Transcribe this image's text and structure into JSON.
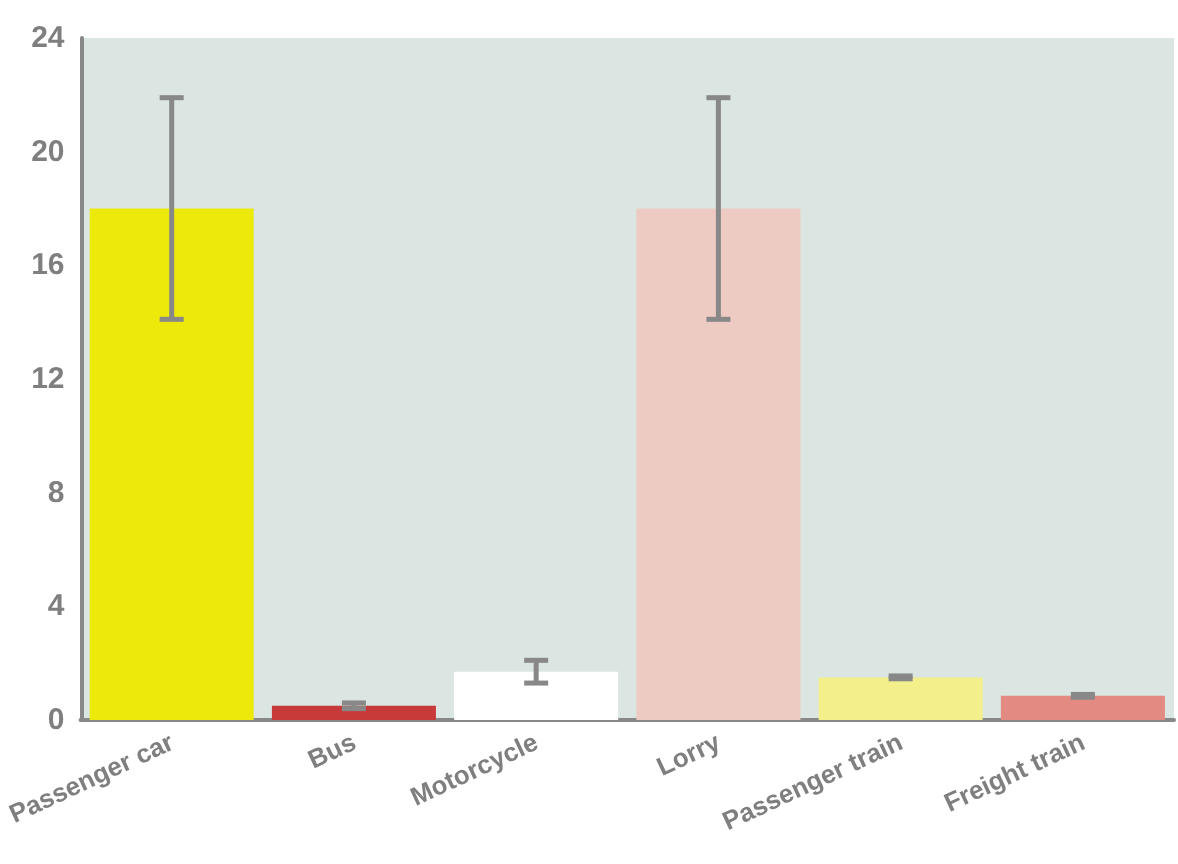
{
  "chart_data": {
    "type": "bar",
    "categories": [
      "Passenger car",
      "Bus",
      "Motorcycle",
      "Lorry",
      "Passenger train",
      "Freight train"
    ],
    "values": [
      18,
      0.5,
      1.7,
      18,
      1.5,
      0.85
    ],
    "colors": [
      "#ede90a",
      "#c83a3a",
      "#ffffff",
      "#edcbc2",
      "#f3ef8a",
      "#e38a82"
    ],
    "errors": [
      3.9,
      0.1,
      0.4,
      3.9,
      0.05,
      0.05
    ],
    "ylim": [
      0,
      24
    ],
    "yticks": [
      0,
      4,
      8,
      12,
      16,
      20,
      24
    ],
    "grid": false
  }
}
